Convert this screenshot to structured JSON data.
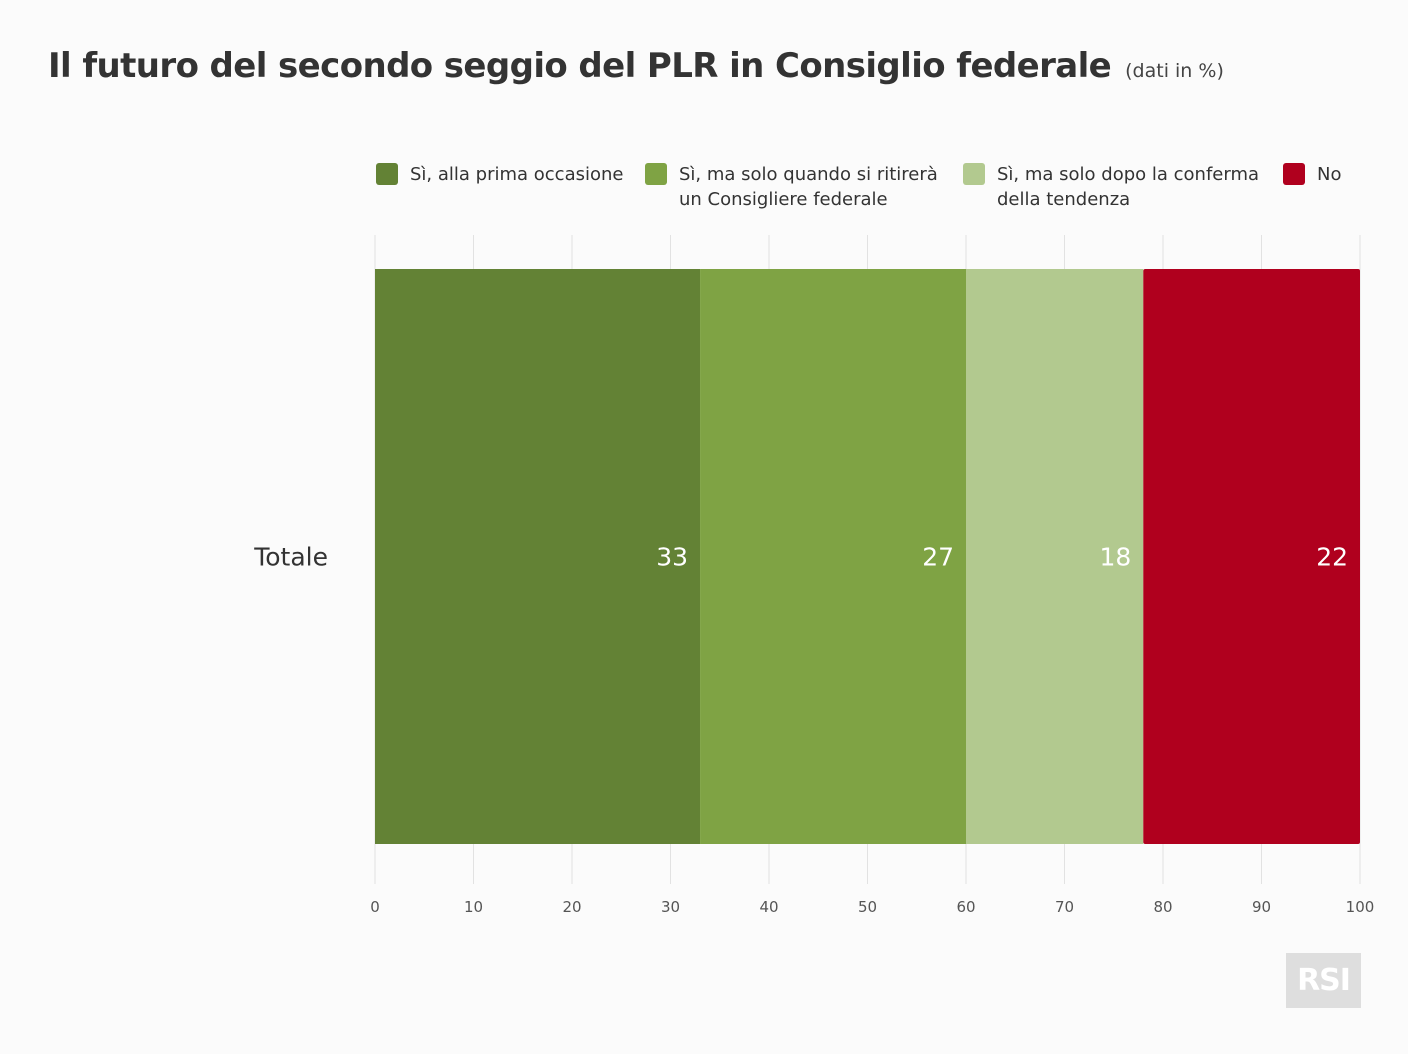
{
  "chart_data": {
    "type": "bar",
    "orientation": "horizontal",
    "stacked": true,
    "title": "Il futuro del secondo seggio del PLR in Consiglio federale",
    "subtitle": "(dati in %)",
    "categories": [
      "Totale"
    ],
    "series": [
      {
        "name": "Sì, alla prima occasione",
        "values": [
          33
        ],
        "color": "#638235"
      },
      {
        "name": "Sì, ma solo quando si ritirerà\nun Consigliere federale",
        "values": [
          27
        ],
        "color": "#7fa344"
      },
      {
        "name": "Sì, ma solo dopo la conferma\ndella tendenza",
        "values": [
          18
        ],
        "color": "#b2c98f"
      },
      {
        "name": "No",
        "values": [
          22
        ],
        "color": "#b0001e"
      }
    ],
    "xlim": [
      0,
      100
    ],
    "xticks": [
      "0",
      "10",
      "20",
      "30",
      "40",
      "50",
      "60",
      "70",
      "80",
      "90",
      "100"
    ],
    "grid": true,
    "legend": "top"
  },
  "logo": "RSI"
}
